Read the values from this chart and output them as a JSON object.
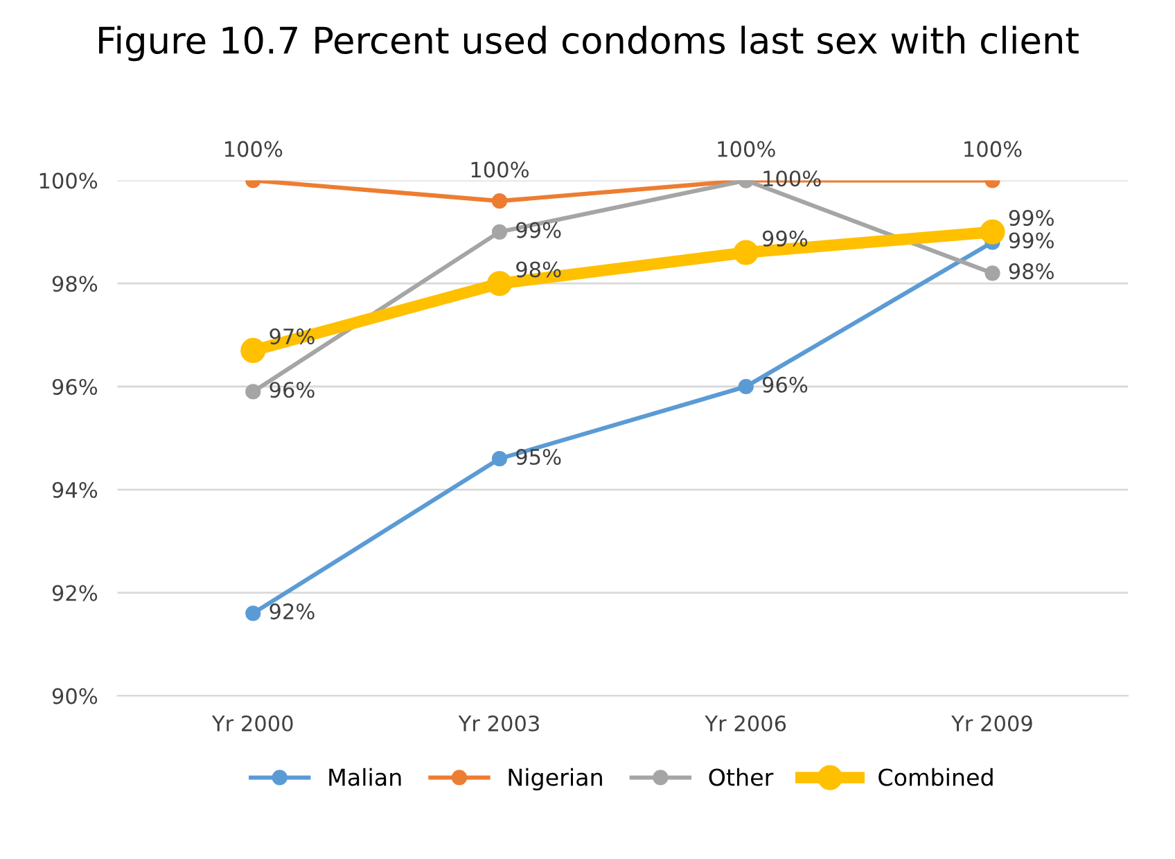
{
  "chart_data": {
    "type": "line",
    "title": "Figure 10.7 Percent used condoms last sex with client",
    "categories": [
      "Yr 2000",
      "Yr 2003",
      "Yr 2006",
      "Yr 2009"
    ],
    "series": [
      {
        "name": "Malian",
        "color": "#5b9bd5",
        "values": [
          91.6,
          94.6,
          96.0,
          98.8
        ],
        "value_labels": [
          "92%",
          "95%",
          "96%",
          "99%"
        ]
      },
      {
        "name": "Nigerian",
        "color": "#ed7d31",
        "values": [
          100.0,
          99.6,
          100.0,
          100.0
        ],
        "value_labels": [
          "100%",
          "100%",
          "100%",
          "100%"
        ]
      },
      {
        "name": "Other",
        "color": "#a5a5a5",
        "values": [
          95.9,
          99.0,
          100.0,
          98.2
        ],
        "value_labels": [
          "96%",
          "99%",
          "100%",
          "98%"
        ]
      },
      {
        "name": "Combined",
        "color": "#ffc000",
        "values": [
          96.7,
          98.0,
          98.6,
          99.0
        ],
        "value_labels": [
          "97%",
          "98%",
          "99%",
          "99%"
        ]
      }
    ],
    "ylim": [
      90,
      100
    ],
    "yticks": [
      {
        "value": 90,
        "label": "90%"
      },
      {
        "value": 92,
        "label": "92%"
      },
      {
        "value": 94,
        "label": "94%"
      },
      {
        "value": 96,
        "label": "96%"
      },
      {
        "value": 98,
        "label": "98%"
      },
      {
        "value": 100,
        "label": "100%"
      }
    ],
    "grid": "y",
    "legend": "bottom",
    "marker": "circle",
    "line_style": "solid"
  }
}
